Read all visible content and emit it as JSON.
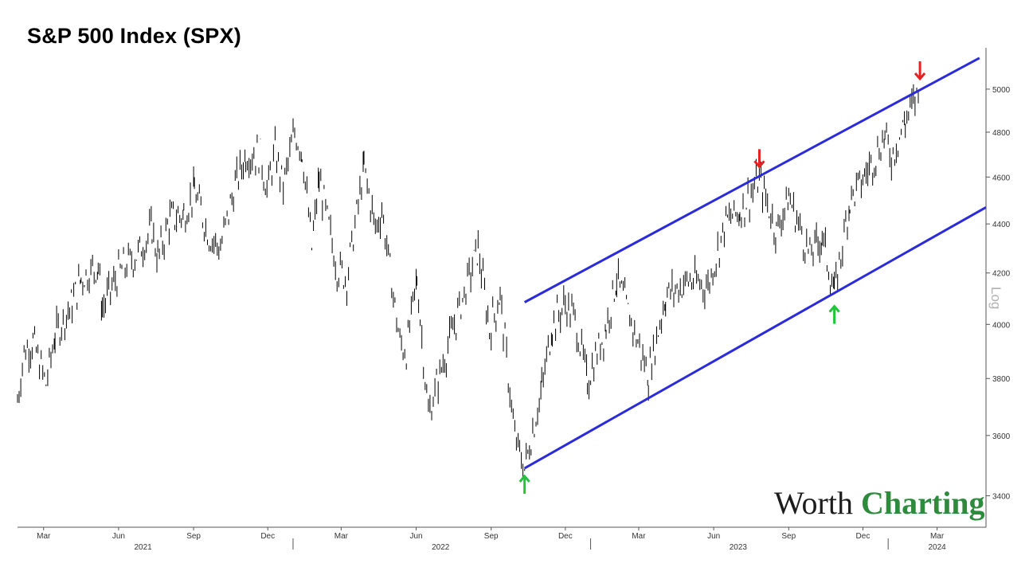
{
  "title": "S&P 500 Index (SPX)",
  "logo": {
    "part1": "Worth",
    "part2": "Charting"
  },
  "chart_data": {
    "type": "line",
    "title": "S&P 500 Index (SPX)",
    "scale": "log",
    "scale_label": "Log",
    "ylim": [
      3300,
      5200
    ],
    "y_ticks": [
      3400,
      3600,
      3800,
      4000,
      4200,
      4400,
      4600,
      4800,
      5000
    ],
    "x_month_labels": [
      {
        "label": "Mar",
        "date": "2021-03-01"
      },
      {
        "label": "Jun",
        "date": "2021-06-01"
      },
      {
        "label": "Sep",
        "date": "2021-09-01"
      },
      {
        "label": "Dec",
        "date": "2021-12-01"
      },
      {
        "label": "Mar",
        "date": "2022-03-01"
      },
      {
        "label": "Jun",
        "date": "2022-06-01"
      },
      {
        "label": "Sep",
        "date": "2022-09-01"
      },
      {
        "label": "Dec",
        "date": "2022-12-01"
      },
      {
        "label": "Mar",
        "date": "2023-03-01"
      },
      {
        "label": "Jun",
        "date": "2023-06-01"
      },
      {
        "label": "Sep",
        "date": "2023-09-01"
      },
      {
        "label": "Dec",
        "date": "2023-12-01"
      },
      {
        "label": "Mar",
        "date": "2024-03-01"
      }
    ],
    "x_year_labels": [
      {
        "label": "2021",
        "date": "2021-07-01"
      },
      {
        "label": "2022",
        "date": "2022-07-01"
      },
      {
        "label": "2023",
        "date": "2023-07-01"
      },
      {
        "label": "2024",
        "date": "2024-03-01"
      }
    ],
    "x_year_separators": [
      "2022-01-01",
      "2023-01-01",
      "2024-01-01"
    ],
    "x_range": [
      "2021-01-28",
      "2024-04-30"
    ],
    "series": [
      {
        "points": [
          [
            "2021-01-28",
            3720
          ],
          [
            "2021-02-05",
            3900
          ],
          [
            "2021-02-16",
            3935
          ],
          [
            "2021-03-04",
            3780
          ],
          [
            "2021-03-15",
            3960
          ],
          [
            "2021-04-05",
            4080
          ],
          [
            "2021-04-16",
            4180
          ],
          [
            "2021-05-07",
            4230
          ],
          [
            "2021-05-12",
            4060
          ],
          [
            "2021-06-01",
            4200
          ],
          [
            "2021-06-25",
            4280
          ],
          [
            "2021-07-12",
            4380
          ],
          [
            "2021-07-19",
            4260
          ],
          [
            "2021-08-03",
            4420
          ],
          [
            "2021-08-20",
            4440
          ],
          [
            "2021-09-02",
            4540
          ],
          [
            "2021-09-20",
            4350
          ],
          [
            "2021-10-04",
            4300
          ],
          [
            "2021-10-20",
            4540
          ],
          [
            "2021-11-04",
            4700
          ],
          [
            "2021-11-22",
            4700
          ],
          [
            "2021-11-30",
            4540
          ],
          [
            "2021-12-10",
            4710
          ],
          [
            "2021-12-20",
            4560
          ],
          [
            "2022-01-03",
            4800
          ],
          [
            "2022-01-12",
            4720
          ],
          [
            "2022-01-24",
            4300
          ],
          [
            "2022-02-02",
            4590
          ],
          [
            "2022-02-24",
            4220
          ],
          [
            "2022-03-08",
            4180
          ],
          [
            "2022-03-29",
            4640
          ],
          [
            "2022-04-12",
            4380
          ],
          [
            "2022-04-20",
            4460
          ],
          [
            "2022-05-12",
            3930
          ],
          [
            "2022-05-20",
            3900
          ],
          [
            "2022-06-02",
            4180
          ],
          [
            "2022-06-16",
            3670
          ],
          [
            "2022-07-08",
            3900
          ],
          [
            "2022-08-16",
            4300
          ],
          [
            "2022-08-30",
            3980
          ],
          [
            "2022-09-12",
            4110
          ],
          [
            "2022-09-30",
            3590
          ],
          [
            "2022-10-12",
            3490
          ],
          [
            "2022-11-02",
            3760
          ],
          [
            "2022-11-15",
            4000
          ],
          [
            "2022-12-01",
            4080
          ],
          [
            "2022-12-13",
            4020
          ],
          [
            "2022-12-28",
            3790
          ],
          [
            "2023-01-20",
            3990
          ],
          [
            "2023-02-02",
            4180
          ],
          [
            "2023-02-24",
            3970
          ],
          [
            "2023-03-13",
            3810
          ],
          [
            "2023-04-03",
            4110
          ],
          [
            "2023-05-01",
            4170
          ],
          [
            "2023-05-25",
            4150
          ],
          [
            "2023-06-16",
            4410
          ],
          [
            "2023-07-03",
            4450
          ],
          [
            "2023-07-27",
            4590
          ],
          [
            "2023-08-17",
            4370
          ],
          [
            "2023-09-01",
            4515
          ],
          [
            "2023-09-27",
            4270
          ],
          [
            "2023-10-12",
            4350
          ],
          [
            "2023-10-27",
            4120
          ],
          [
            "2023-11-15",
            4500
          ],
          [
            "2023-12-01",
            4590
          ],
          [
            "2023-12-28",
            4780
          ],
          [
            "2024-01-05",
            4690
          ],
          [
            "2024-01-22",
            4850
          ],
          [
            "2024-02-09",
            5000
          ]
        ]
      }
    ],
    "channel_lines": [
      {
        "from": [
          "2022-10-12",
          4085
        ],
        "to": [
          "2024-04-22",
          5150
        ]
      },
      {
        "from": [
          "2022-10-12",
          3490
        ],
        "to": [
          "2024-04-30",
          4470
        ]
      }
    ],
    "markers": [
      {
        "type": "down",
        "date": "2023-07-27",
        "value": 4600
      },
      {
        "type": "down",
        "date": "2024-02-09",
        "value": 5000
      },
      {
        "type": "up",
        "date": "2022-10-12",
        "value": 3490
      },
      {
        "type": "up",
        "date": "2023-10-27",
        "value": 4100
      }
    ],
    "colors": {
      "price": "#000000",
      "channel": "#2b2bd9",
      "down_arrow": "#e52222",
      "up_arrow": "#22c43a",
      "axis": "#555555",
      "log_label": "#b0b0b0"
    },
    "grid": false
  }
}
